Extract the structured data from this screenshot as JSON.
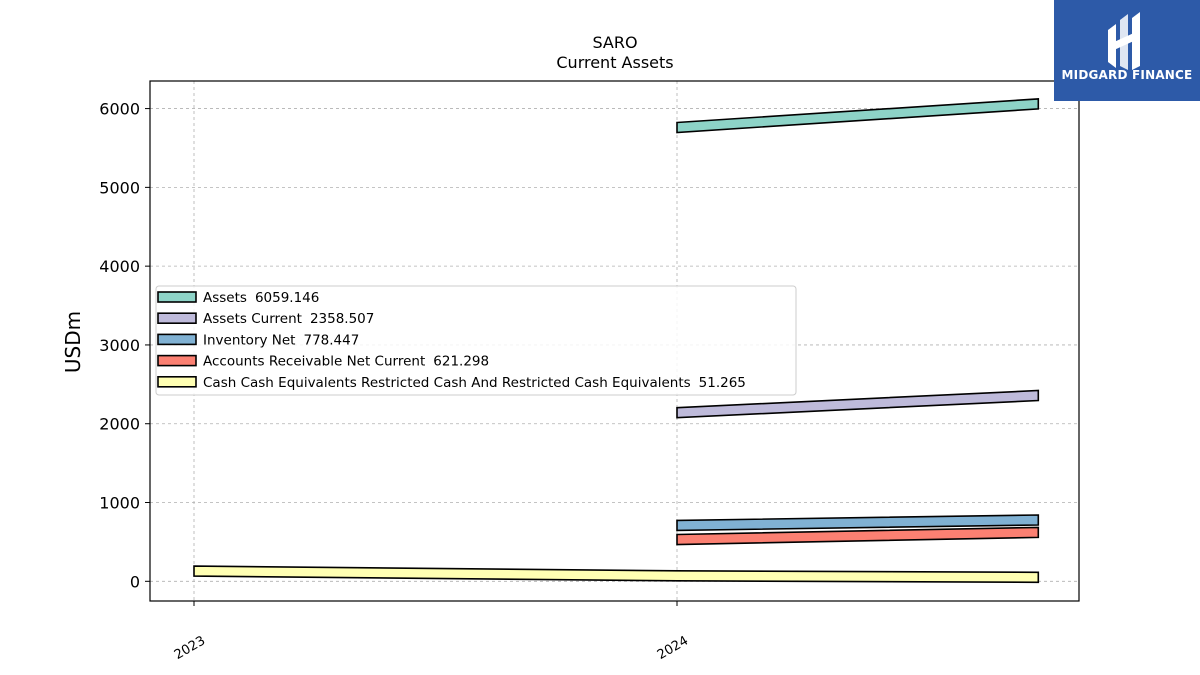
{
  "chart_data": {
    "type": "line",
    "title": "SARO",
    "subtitle": "Current  Assets",
    "xlabel": "",
    "ylabel": "USDm",
    "x_ticks": [
      "2023",
      "2024"
    ],
    "y_ticks": [
      "0",
      "1000",
      "2000",
      "3000",
      "4000",
      "5000",
      "6000"
    ],
    "ylim": [
      -250,
      6350
    ],
    "grid": true,
    "legend_placement": "center-left",
    "series": [
      {
        "name": "Assets",
        "legend_value": "6059.146",
        "color": "#8dd3c7",
        "points": [
          [
            "2024-01-01",
            5760
          ],
          [
            "2024-09-30",
            6059.146
          ]
        ]
      },
      {
        "name": "Assets Current",
        "legend_value": "2358.507",
        "color": "#bebada",
        "points": [
          [
            "2024-01-01",
            2140
          ],
          [
            "2024-09-30",
            2358.507
          ]
        ]
      },
      {
        "name": "Inventory Net",
        "legend_value": "778.447",
        "color": "#80b1d3",
        "points": [
          [
            "2024-01-01",
            710
          ],
          [
            "2024-09-30",
            778.447
          ]
        ]
      },
      {
        "name": "Accounts Receivable Net Current",
        "legend_value": "621.298",
        "color": "#fb8072",
        "points": [
          [
            "2024-01-01",
            530
          ],
          [
            "2024-09-30",
            621.298
          ]
        ]
      },
      {
        "name": "Cash Cash Equivalents Restricted Cash And Restricted Cash Equivalents",
        "legend_value": "51.265",
        "color": "#ffffb3",
        "points": [
          [
            "2023-01-01",
            130
          ],
          [
            "2024-01-01",
            70
          ],
          [
            "2024-09-30",
            51.265
          ]
        ]
      }
    ]
  },
  "logo": {
    "text": "MIDGARD FINANCE",
    "background": "#2d5aa8"
  }
}
